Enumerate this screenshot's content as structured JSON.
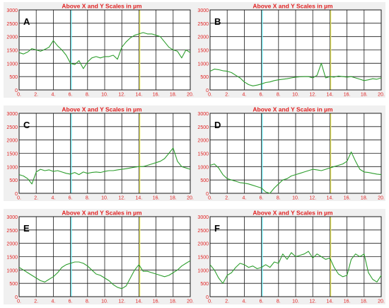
{
  "colors": {
    "frame_bg": "#f0f0f0",
    "plot_bg": "#ffffff",
    "grid": "#1a1a1a",
    "title": "#e02020",
    "ticks": "#e02020",
    "series": "#2e9e2e",
    "marker_cyan": "#6fe0e8",
    "marker_yellow": "#f2f06a",
    "panel_letter": "#000000"
  },
  "chart_data": [
    {
      "panel": "A",
      "type": "line",
      "title": "Above X and Y Scales in µm",
      "xlim": [
        0,
        20
      ],
      "ylim": [
        0,
        3000
      ],
      "x_ticks": [
        "0.",
        "2.",
        "4.",
        "6.",
        "8.",
        "10.",
        "12.",
        "14.",
        "16.",
        "18.",
        "20."
      ],
      "y_ticks": [
        "0",
        "500",
        "1000",
        "1500",
        "2000",
        "2500",
        "3000"
      ],
      "grid": true,
      "markers": {
        "cyan": 6.1,
        "yellow": 14.1
      },
      "series": [
        {
          "x": [
            0,
            0.5,
            1,
            1.5,
            2,
            2.5,
            3,
            3.5,
            4,
            4.5,
            5,
            5.5,
            6,
            6.5,
            7,
            7.5,
            8,
            8.5,
            9,
            9.5,
            10,
            10.5,
            11,
            11.5,
            12,
            12.5,
            13,
            13.5,
            14,
            14.5,
            15,
            15.5,
            16,
            16.5,
            17,
            17.5,
            18,
            18.5,
            19,
            19.5,
            20
          ],
          "y": [
            1400,
            1350,
            1420,
            1550,
            1500,
            1450,
            1520,
            1600,
            1850,
            1650,
            1500,
            1300,
            1000,
            950,
            1100,
            800,
            1050,
            1200,
            1250,
            1200,
            1250,
            1250,
            1300,
            1150,
            1600,
            1800,
            1950,
            2050,
            2100,
            2150,
            2100,
            2100,
            2050,
            2000,
            1800,
            1600,
            1500,
            1450,
            1200,
            1500,
            1400
          ]
        }
      ]
    },
    {
      "panel": "B",
      "type": "line",
      "title": "Above X and Y Scales in µm",
      "xlim": [
        0,
        20
      ],
      "ylim": [
        0,
        3000
      ],
      "x_ticks": [
        "0.",
        "2.",
        "4.",
        "6.",
        "8.",
        "10.",
        "12.",
        "14.",
        "16.",
        "18.",
        "20."
      ],
      "y_ticks": [
        "0",
        "500",
        "1000",
        "1500",
        "2000",
        "2500",
        "3000"
      ],
      "grid": true,
      "markers": {
        "cyan": 6.1,
        "yellow": 14.1
      },
      "series": [
        {
          "x": [
            0,
            0.5,
            1,
            1.5,
            2,
            2.5,
            3,
            3.5,
            4,
            4.5,
            5,
            5.5,
            6,
            6.5,
            7,
            7.5,
            8,
            8.5,
            9,
            9.5,
            10,
            10.5,
            11,
            11.5,
            12,
            12.5,
            13,
            13.5,
            14,
            14.5,
            15,
            15.5,
            16,
            16.5,
            17,
            17.5,
            18,
            18.5,
            19,
            19.5,
            20
          ],
          "y": [
            700,
            780,
            760,
            720,
            700,
            650,
            550,
            450,
            300,
            200,
            150,
            180,
            220,
            280,
            300,
            350,
            380,
            400,
            420,
            450,
            480,
            490,
            500,
            500,
            450,
            550,
            1000,
            450,
            500,
            480,
            520,
            500,
            480,
            500,
            450,
            400,
            350,
            380,
            420,
            400,
            450
          ]
        }
      ]
    },
    {
      "panel": "C",
      "type": "line",
      "title": "Above X and Y Scales in µm",
      "xlim": [
        0,
        20
      ],
      "ylim": [
        0,
        3000
      ],
      "x_ticks": [
        "0.",
        "2.",
        "4.",
        "6.",
        "8.",
        "10.",
        "12.",
        "14.",
        "16.",
        "18.",
        "20."
      ],
      "y_ticks": [
        "0",
        "500",
        "1000",
        "1500",
        "2000",
        "2500",
        "3000"
      ],
      "grid": true,
      "markers": {
        "cyan": 6.1,
        "yellow": 14.1
      },
      "series": [
        {
          "x": [
            0,
            0.5,
            1,
            1.5,
            2,
            2.5,
            3,
            3.5,
            4,
            4.5,
            5,
            5.5,
            6,
            6.5,
            7,
            7.5,
            8,
            8.5,
            9,
            9.5,
            10,
            10.5,
            11,
            11.5,
            12,
            12.5,
            13,
            13.5,
            14,
            14.5,
            15,
            15.5,
            16,
            16.5,
            17,
            17.5,
            18,
            18.5,
            19,
            19.5,
            20
          ],
          "y": [
            700,
            650,
            550,
            350,
            800,
            900,
            850,
            880,
            820,
            850,
            800,
            750,
            720,
            780,
            700,
            800,
            750,
            780,
            800,
            780,
            820,
            850,
            850,
            880,
            900,
            920,
            950,
            980,
            1000,
            1000,
            1050,
            1100,
            1150,
            1200,
            1300,
            1500,
            1700,
            1200,
            1000,
            950,
            900
          ]
        }
      ]
    },
    {
      "panel": "D",
      "type": "line",
      "title": "Above X and Y Scales in µm",
      "xlim": [
        0,
        20
      ],
      "ylim": [
        0,
        3000
      ],
      "x_ticks": [
        "0.",
        "2.",
        "4.",
        "6.",
        "8.",
        "10.",
        "12.",
        "14.",
        "16.",
        "18.",
        "20."
      ],
      "y_ticks": [
        "0",
        "500",
        "1000",
        "1500",
        "2000",
        "2500",
        "3000"
      ],
      "grid": true,
      "markers": {
        "cyan": 6.1,
        "yellow": 14.1
      },
      "series": [
        {
          "x": [
            0,
            0.5,
            1,
            1.5,
            2,
            2.5,
            3,
            3.5,
            4,
            4.5,
            5,
            5.5,
            6,
            6.5,
            7,
            7.5,
            8,
            8.5,
            9,
            9.5,
            10,
            10.5,
            11,
            11.5,
            12,
            12.5,
            13,
            13.5,
            14,
            14.5,
            15,
            15.5,
            16,
            16.5,
            17,
            17.5,
            18,
            18.5,
            19,
            19.5,
            20
          ],
          "y": [
            1050,
            1100,
            950,
            700,
            550,
            500,
            450,
            400,
            380,
            350,
            300,
            250,
            200,
            50,
            0,
            200,
            350,
            500,
            550,
            650,
            700,
            750,
            800,
            850,
            900,
            880,
            850,
            900,
            950,
            1000,
            1050,
            1100,
            1200,
            1550,
            1200,
            900,
            800,
            780,
            750,
            720,
            700
          ]
        }
      ]
    },
    {
      "panel": "E",
      "type": "line",
      "title": "Above X and Y Scales in µm",
      "xlim": [
        0,
        20
      ],
      "ylim": [
        0,
        3000
      ],
      "x_ticks": [
        "0.",
        "2.",
        "4.",
        "6.",
        "8.",
        "10.",
        "12.",
        "14.",
        "16.",
        "18.",
        "20."
      ],
      "y_ticks": [
        "0",
        "500",
        "1000",
        "1500",
        "2000",
        "2500",
        "3000"
      ],
      "grid": true,
      "markers": {
        "cyan": 6.1,
        "yellow": 14.1
      },
      "series": [
        {
          "x": [
            0,
            0.5,
            1,
            1.5,
            2,
            2.5,
            3,
            3.5,
            4,
            4.5,
            5,
            5.5,
            6,
            6.5,
            7,
            7.5,
            8,
            8.5,
            9,
            9.5,
            10,
            10.5,
            11,
            11.5,
            12,
            12.5,
            13,
            13.5,
            14,
            14.5,
            15,
            15.5,
            16,
            16.5,
            17,
            17.5,
            18,
            18.5,
            19,
            19.5,
            20
          ],
          "y": [
            1100,
            1000,
            900,
            800,
            700,
            600,
            550,
            650,
            750,
            900,
            1100,
            1200,
            1250,
            1300,
            1300,
            1250,
            1150,
            1000,
            850,
            800,
            700,
            600,
            450,
            350,
            300,
            400,
            700,
            1000,
            1200,
            950,
            950,
            900,
            850,
            800,
            750,
            800,
            900,
            1000,
            1150,
            1250,
            1350
          ]
        }
      ]
    },
    {
      "panel": "F",
      "type": "line",
      "title": "Above X and Y Scales in µm",
      "xlim": [
        0,
        20
      ],
      "ylim": [
        0,
        3000
      ],
      "x_ticks": [
        "0.",
        "2.",
        "4.",
        "6.",
        "8.",
        "10.",
        "12.",
        "14.",
        "16.",
        "18.",
        "20."
      ],
      "y_ticks": [
        "0",
        "500",
        "1000",
        "1500",
        "2000",
        "2500",
        "3000"
      ],
      "grid": true,
      "markers": {
        "cyan": 6.1,
        "yellow": 14.1
      },
      "series": [
        {
          "x": [
            0,
            0.5,
            1,
            1.5,
            2,
            2.5,
            3,
            3.5,
            4,
            4.5,
            5,
            5.5,
            6,
            6.5,
            7,
            7.5,
            8,
            8.5,
            9,
            9.5,
            10,
            10.5,
            11,
            11.5,
            12,
            12.5,
            13,
            13.5,
            14,
            14.5,
            15,
            15.5,
            16,
            16.5,
            17,
            17.5,
            18,
            18.5,
            19,
            19.5,
            20
          ],
          "y": [
            1200,
            1000,
            700,
            500,
            800,
            900,
            1100,
            1250,
            1200,
            1100,
            1150,
            1050,
            1100,
            1200,
            1100,
            1300,
            1250,
            1600,
            1400,
            1650,
            1500,
            1550,
            1600,
            1700,
            1450,
            1600,
            1500,
            1400,
            1450,
            1100,
            850,
            750,
            800,
            1400,
            1600,
            1500,
            1600,
            900,
            650,
            550,
            800
          ]
        }
      ]
    }
  ]
}
